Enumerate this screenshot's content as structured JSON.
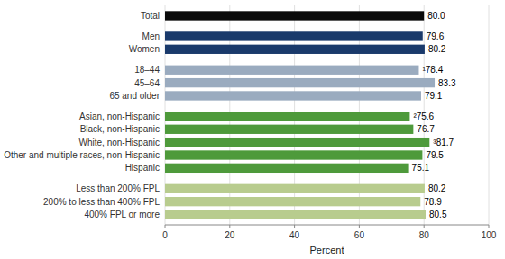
{
  "chart_data": {
    "type": "bar",
    "orientation": "horizontal",
    "categories": [
      "Total",
      "Men",
      "Women",
      "18–44",
      "45–64",
      "65 and older",
      "Asian, non-Hispanic",
      "Black, non-Hispanic",
      "White, non-Hispanic",
      "Other and multiple races, non-Hispanic",
      "Hispanic",
      "Less than 200% FPL",
      "200% to less than 400% FPL",
      "400% FPL or more"
    ],
    "values": [
      80.0,
      79.6,
      80.2,
      78.4,
      83.3,
      79.1,
      75.6,
      76.7,
      81.7,
      79.5,
      75.1,
      80.2,
      78.9,
      80.5
    ],
    "value_labels": [
      "80.0",
      "79.6",
      "80.2",
      "¹78.4",
      "83.3",
      "79.1",
      "²75.6",
      "76.7",
      "³81.7",
      "79.5",
      "75.1",
      "80.2",
      "78.9",
      "80.5"
    ],
    "colors": [
      "#0a0a0a",
      "#1a3a6b",
      "#1a3a6b",
      "#9aabbf",
      "#9aabbf",
      "#9aabbf",
      "#4e9a3b",
      "#4e9a3b",
      "#4e9a3b",
      "#4e9a3b",
      "#4e9a3b",
      "#b8cc8e",
      "#b8cc8e",
      "#b8cc8e"
    ],
    "xlabel": "Percent",
    "xlim": [
      0,
      100
    ],
    "xticks": [
      0,
      20,
      40,
      60,
      80,
      100
    ],
    "grid": true,
    "data_labels": true
  }
}
